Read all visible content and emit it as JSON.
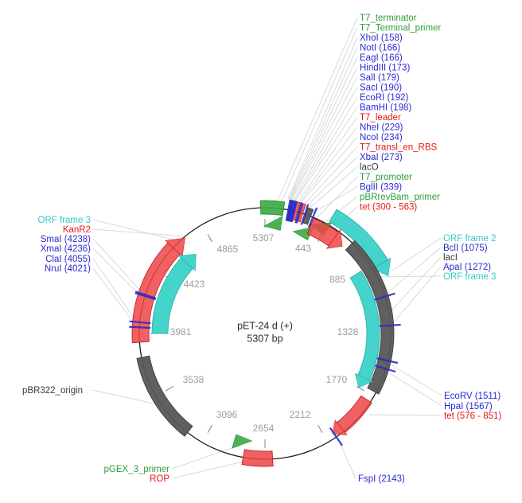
{
  "plasmid": {
    "name": "pET-24 d (+)",
    "size": "5307 bp"
  },
  "colors": {
    "green": "#2f9e38",
    "blue": "#2a2ad4",
    "red": "#ea1717",
    "teal": "#38c6c9",
    "black": "#3a3a3a",
    "tick_text": "#9c9c9c",
    "arc_red": "#f04545",
    "arc_red_stroke": "#c42525",
    "arc_teal": "#3bd2c8",
    "arc_teal_stroke": "#27b1a8",
    "arc_gray": "#575757",
    "arc_gray_stroke": "#3e3e3e",
    "arc_green": "#3aa843",
    "arc_green_stroke": "#2c8f36",
    "site_blue": "#2b2bc8",
    "circle": "#1c1c1c",
    "tick": "#8f8f8f",
    "leader": "#d9d9d9"
  },
  "ticks": [
    {
      "label": "5307",
      "angle": 0
    },
    {
      "label": "443",
      "angle": 30
    },
    {
      "label": "885",
      "angle": 60
    },
    {
      "label": "1328",
      "angle": 90
    },
    {
      "label": "1770",
      "angle": 120
    },
    {
      "label": "2212",
      "angle": 150
    },
    {
      "label": "2654",
      "angle": 180
    },
    {
      "label": "3096",
      "angle": 210
    },
    {
      "label": "3538",
      "angle": 240
    },
    {
      "label": "3981",
      "angle": 270
    },
    {
      "label": "4423",
      "angle": 300
    },
    {
      "label": "4865",
      "angle": 330
    }
  ],
  "labels": {
    "top_right": [
      {
        "text": "T7_terminator",
        "color": "green"
      },
      {
        "text": "T7_Terminal_primer",
        "color": "green"
      },
      {
        "text": "XhoI (158)",
        "color": "blue"
      },
      {
        "text": "NotI (166)",
        "color": "blue"
      },
      {
        "text": "EagI (166)",
        "color": "blue"
      },
      {
        "text": "HindIII (173)",
        "color": "blue"
      },
      {
        "text": "SalI (179)",
        "color": "blue"
      },
      {
        "text": "SacI (190)",
        "color": "blue"
      },
      {
        "text": "EcoRI (192)",
        "color": "blue"
      },
      {
        "text": "BamHI (198)",
        "color": "blue"
      },
      {
        "text": "T7_leader",
        "color": "red"
      },
      {
        "text": "NheI (229)",
        "color": "blue"
      },
      {
        "text": "NcoI (234)",
        "color": "blue"
      },
      {
        "text": "T7_transl_en_RBS",
        "color": "red"
      },
      {
        "text": "XbaI (273)",
        "color": "blue"
      },
      {
        "text": "lacO",
        "color": "black"
      },
      {
        "text": "T7_promoter",
        "color": "green"
      },
      {
        "text": "BglII (339)",
        "color": "blue"
      },
      {
        "text": "pBRrevBam_primer",
        "color": "green"
      },
      {
        "text": "tet (300 - 563)",
        "color": "red"
      }
    ],
    "left": [
      {
        "text": "ORF frame 3",
        "color": "teal"
      },
      {
        "text": "KanR2",
        "color": "red"
      },
      {
        "text": "SmaI (4238)",
        "color": "blue"
      },
      {
        "text": "XmaI (4236)",
        "color": "blue"
      },
      {
        "text": "ClaI (4055)",
        "color": "blue"
      },
      {
        "text": "NruI (4021)",
        "color": "blue"
      }
    ],
    "right": [
      {
        "text": "ORF frame 2",
        "color": "teal"
      },
      {
        "text": "BclI (1075)",
        "color": "blue"
      },
      {
        "text": "lacI",
        "color": "black"
      },
      {
        "text": "ApaI (1272)",
        "color": "blue"
      },
      {
        "text": "ORF frame 3",
        "color": "teal"
      }
    ],
    "lower_right": [
      {
        "text": "EcoRV (1511)",
        "color": "blue"
      },
      {
        "text": "HpaI (1567)",
        "color": "blue"
      },
      {
        "text": "tet (576 - 851)",
        "color": "red"
      }
    ],
    "bottom_right": [
      {
        "text": "FspI (2143)",
        "color": "blue"
      }
    ],
    "left_single": [
      {
        "text": "pBR322_origin",
        "color": "black"
      }
    ],
    "bottom": [
      {
        "text": "pGEX_3_primer",
        "color": "green"
      },
      {
        "text": "ROP",
        "color": "red"
      }
    ]
  },
  "features": [
    {
      "name": "T7_terminator",
      "kind": "box",
      "color": "green",
      "a1": -2,
      "a2": 8.5,
      "r1": 150,
      "r2": 167
    },
    {
      "name": "T7_Terminal_primer",
      "kind": "marker",
      "color": "green",
      "angle": 6,
      "r": 140
    },
    {
      "name": "T7_leader",
      "kind": "box",
      "color": "red",
      "a1": 13.7,
      "a2": 14.9,
      "r1": 147,
      "r2": 170
    },
    {
      "name": "T7_transl_en_RBS",
      "kind": "box",
      "color": "red",
      "a1": 16.4,
      "a2": 17.5,
      "r1": 147,
      "r2": 170
    },
    {
      "name": "lacO",
      "kind": "box",
      "color": "gray",
      "a1": 18.9,
      "a2": 21.3,
      "r1": 147,
      "r2": 167
    },
    {
      "name": "T7_promoter",
      "kind": "marker",
      "color": "green",
      "angle": 22,
      "r": 138
    },
    {
      "name": "pBRrevBam_primer",
      "kind": "marker",
      "color": "green",
      "angle": 28.5,
      "r": 153
    },
    {
      "name": "tet (300 - 563)",
      "kind": "arc-arrow",
      "color": "red",
      "a1": 23,
      "a2": 36,
      "r1": 136,
      "r2": 157,
      "tip": 41.5
    },
    {
      "name": "ORF frame 2",
      "kind": "arc-arrow",
      "color": "teal",
      "a1": 30,
      "a2": 59,
      "r1": 162,
      "r2": 180,
      "tip": 65
    },
    {
      "name": "lacI",
      "kind": "arc",
      "color": "gray",
      "a1": 44,
      "a2": 118,
      "r1": 146,
      "r2": 162
    },
    {
      "name": "ORF frame 3 right",
      "kind": "arc-arrow",
      "color": "teal",
      "a1": 57,
      "a2": 114,
      "r1": 128,
      "r2": 144,
      "tip": 120
    },
    {
      "name": "tet (576 - 851)",
      "kind": "arc-arrow",
      "color": "red",
      "a1": 123,
      "a2": 141,
      "r1": 144,
      "r2": 160,
      "tip": 146
    },
    {
      "name": "ROP",
      "kind": "arc",
      "color": "red",
      "a1": 176.5,
      "a2": 190,
      "r1": 148,
      "r2": 167
    },
    {
      "name": "pGEX_3_primer",
      "kind": "marker",
      "color": "green",
      "angle": 193.5,
      "r": 141
    },
    {
      "name": "pBR322_origin",
      "kind": "arc",
      "color": "gray",
      "a1": 218,
      "a2": 259,
      "r1": 148,
      "r2": 164
    },
    {
      "name": "KanR2",
      "kind": "arc-arrow",
      "color": "red",
      "a1": 266,
      "a2": 313,
      "r1": 146,
      "r2": 167,
      "tip": 320
    },
    {
      "name": "ORF frame 3 left",
      "kind": "arc-arrow",
      "color": "teal",
      "a1": 270,
      "a2": 312,
      "r1": 122,
      "r2": 142,
      "tip": 319
    }
  ],
  "sites": [
    {
      "name": "XhoI",
      "angle": 10.7
    },
    {
      "name": "NotI",
      "angle": 11.2
    },
    {
      "name": "EagI",
      "angle": 11.5
    },
    {
      "name": "HindIII",
      "angle": 11.85
    },
    {
      "name": "SalI",
      "angle": 12.2
    },
    {
      "name": "SacI",
      "angle": 12.85
    },
    {
      "name": "EcoRI",
      "angle": 13.1
    },
    {
      "name": "BamHI",
      "angle": 13.45
    },
    {
      "name": "NheI",
      "angle": 15.5
    },
    {
      "name": "NcoI",
      "angle": 15.9
    },
    {
      "name": "XbaI",
      "angle": 18.5
    },
    {
      "name": "BglII",
      "angle": 22.4
    },
    {
      "name": "BclI",
      "angle": 72.9
    },
    {
      "name": "ApaI",
      "angle": 86.3
    },
    {
      "name": "EcoRV",
      "angle": 102.5
    },
    {
      "name": "HpaI",
      "angle": 106.3
    },
    {
      "name": "FspI",
      "angle": 145.4
    },
    {
      "name": "NruI",
      "angle": 272.8
    },
    {
      "name": "ClaI",
      "angle": 275.1
    },
    {
      "name": "XmaI",
      "angle": 287.3
    },
    {
      "name": "SmaI",
      "angle": 287.9
    }
  ]
}
